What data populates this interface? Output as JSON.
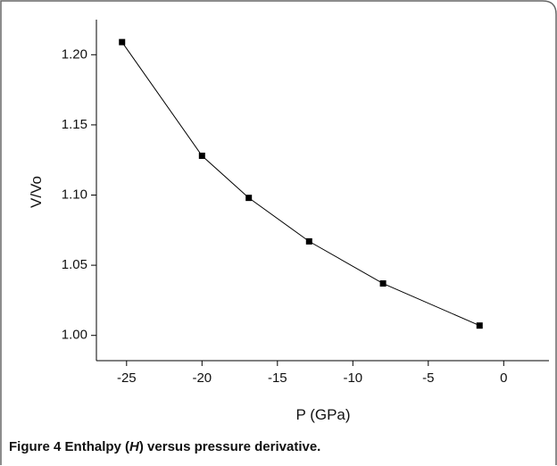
{
  "chart_data": {
    "type": "line",
    "x_label": "P (GPa)",
    "y_label": "V/Vo",
    "caption": {
      "label": "Figure 4",
      "parts": [
        "Enthalpy (",
        "H",
        ") versus pressure derivative."
      ]
    },
    "x": [
      -25.3,
      -20,
      -16.9,
      -12.9,
      -8,
      -1.6
    ],
    "series": [
      {
        "color": "#000000",
        "values": [
          1.209,
          1.128,
          1.098,
          1.067,
          1.037,
          1.007
        ]
      }
    ],
    "xlim": [
      -27,
      3
    ],
    "ylim": [
      0.982,
      1.225
    ],
    "xticks": [
      -25,
      -20,
      -15,
      -10,
      -5,
      0
    ],
    "yticks": [
      {
        "value": 1.0,
        "label": "1.00"
      },
      {
        "value": 1.05,
        "label": "1.05"
      },
      {
        "value": 1.1,
        "label": "1.10"
      },
      {
        "value": 1.15,
        "label": "1.15"
      },
      {
        "value": 1.2,
        "label": "1.20"
      }
    ]
  }
}
